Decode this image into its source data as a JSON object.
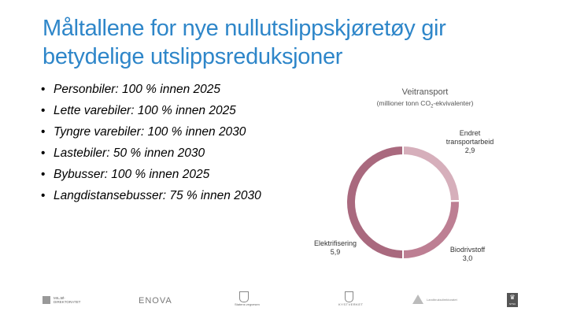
{
  "slide": {
    "title": "Måltallene for nye nullutslippskjøretøy gir betydelige utslippsreduksjoner",
    "bullets": [
      "Personbiler: 100 % innen 2025",
      "Lette varebiler: 100 % innen 2025",
      "Tyngre varebiler: 100 % innen 2030",
      "Lastebiler: 50 % innen 2030",
      "Bybusser: 100 % innen 2025",
      "Langdistansebusser: 75 % innen 2030"
    ]
  },
  "chart_data": {
    "type": "pie",
    "donut": true,
    "title": "Veitransport",
    "subtitle_prefix": "(millioner tonn CO",
    "subtitle_sub": "2",
    "subtitle_suffix": "-ekvivalenter)",
    "categories": [
      "Endret transportarbeid",
      "Biodrivstoff",
      "Elektrifisering"
    ],
    "values": [
      2.9,
      3.0,
      5.9
    ],
    "value_labels": [
      "2,9",
      "3,0",
      "5,9"
    ],
    "label_lines": [
      [
        "Endret",
        "transportarbeid"
      ],
      [
        "Biodrivstoff"
      ],
      [
        "Elektrifisering"
      ]
    ],
    "colors": [
      "#D6AFBB",
      "#BD7F93",
      "#A9697E"
    ],
    "legend": "none"
  },
  "footer": {
    "logos": {
      "miljodirektoratet": "MILJØ-\nDIREKTORATET",
      "enova": "ENOVA",
      "statens_vegvesen": "Statens vegvesen",
      "kystverket": "KYSTVERKET",
      "landbruksdirektoratet": "Landbruksdirektoratet",
      "norges_teknisk": "NTNU"
    }
  }
}
